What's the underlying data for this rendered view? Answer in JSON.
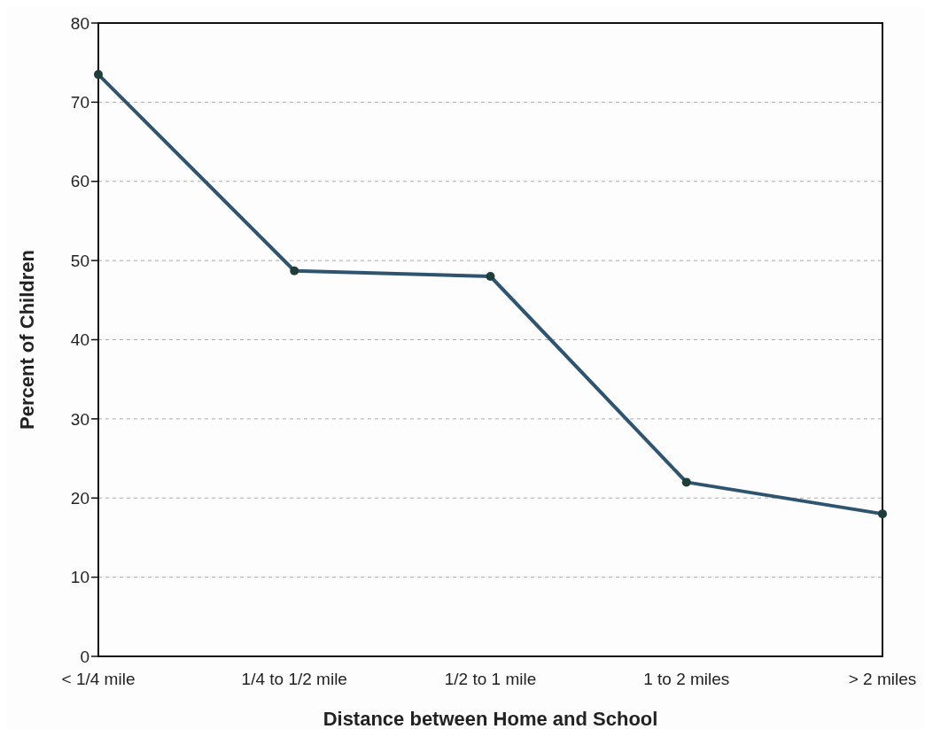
{
  "chart_data": {
    "type": "line",
    "xlabel": "Distance between Home and School",
    "ylabel": "Percent of Children",
    "categories": [
      "< 1/4 mile",
      "1/4 to 1/2 mile",
      "1/2 to 1 mile",
      "1 to 2 miles",
      "> 2 miles"
    ],
    "series": [
      {
        "color": "#2f5470",
        "values": [
          73.5,
          48.7,
          48,
          22,
          18
        ]
      }
    ],
    "ylim": [
      0,
      80
    ],
    "yticks": [
      0,
      10,
      20,
      30,
      40,
      50,
      60,
      70,
      80
    ],
    "grid": "y",
    "marker": "circle",
    "line_style": "solid"
  }
}
